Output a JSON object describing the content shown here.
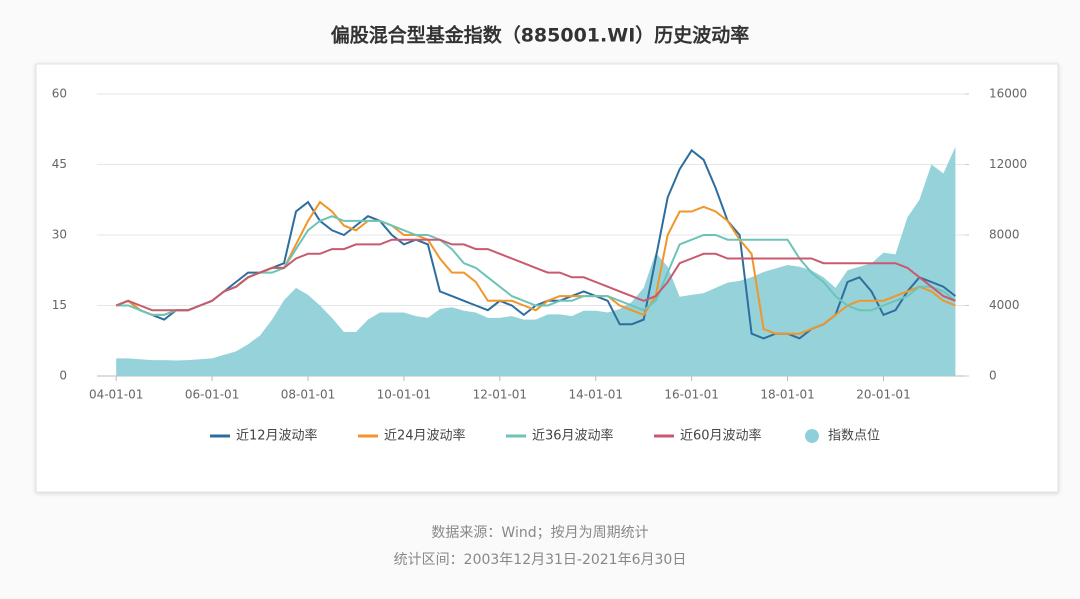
{
  "chart_data": {
    "type": "line",
    "title": "偏股混合型基金指数（885001.WI）历史波动率",
    "notes": [
      "数据来源：Wind；按月为周期统计",
      "统计区间：2003年12月31日-2021年6月30日"
    ],
    "x": [
      2004,
      2004.25,
      2004.5,
      2004.75,
      2005,
      2005.25,
      2005.5,
      2005.75,
      2006,
      2006.25,
      2006.5,
      2006.75,
      2007,
      2007.25,
      2007.5,
      2007.75,
      2008,
      2008.25,
      2008.5,
      2008.75,
      2009,
      2009.25,
      2009.5,
      2009.75,
      2010,
      2010.25,
      2010.5,
      2010.75,
      2011,
      2011.25,
      2011.5,
      2011.75,
      2012,
      2012.25,
      2012.5,
      2012.75,
      2013,
      2013.25,
      2013.5,
      2013.75,
      2014,
      2014.25,
      2014.5,
      2014.75,
      2015,
      2015.25,
      2015.5,
      2015.75,
      2016,
      2016.25,
      2016.5,
      2016.75,
      2017,
      2017.25,
      2017.5,
      2017.75,
      2018,
      2018.25,
      2018.5,
      2018.75,
      2019,
      2019.25,
      2019.5,
      2019.75,
      2020,
      2020.25,
      2020.5,
      2020.75,
      2021,
      2021.25,
      2021.5
    ],
    "xlim": [
      2003.6,
      2021.7
    ],
    "xticks": [
      {
        "value": 2004,
        "label": "04-01-01"
      },
      {
        "value": 2006,
        "label": "06-01-01"
      },
      {
        "value": 2008,
        "label": "08-01-01"
      },
      {
        "value": 2010,
        "label": "10-01-01"
      },
      {
        "value": 2012,
        "label": "12-01-01"
      },
      {
        "value": 2014,
        "label": "14-01-01"
      },
      {
        "value": 2016,
        "label": "16-01-01"
      },
      {
        "value": 2018,
        "label": "18-01-01"
      },
      {
        "value": 2020,
        "label": "20-01-01"
      }
    ],
    "ylim": [
      0,
      60
    ],
    "yticks": [
      0,
      15,
      30,
      45,
      60
    ],
    "y2lim": [
      0,
      16000
    ],
    "y2ticks": [
      0,
      4000,
      8000,
      12000,
      16000
    ],
    "grid": true,
    "series": [
      {
        "name": "近12月波动率",
        "color": "#2e6e9e",
        "values": [
          15,
          16,
          14,
          13,
          12,
          14,
          14,
          15,
          16,
          18,
          20,
          22,
          22,
          23,
          24,
          35,
          37,
          33,
          31,
          30,
          32,
          34,
          33,
          30,
          28,
          29,
          28,
          18,
          17,
          16,
          15,
          14,
          16,
          15,
          13,
          15,
          16,
          16,
          17,
          18,
          17,
          16,
          11,
          11,
          12,
          25,
          38,
          44,
          48,
          46,
          40,
          33,
          30,
          9,
          8,
          9,
          9,
          8,
          10,
          11,
          13,
          20,
          21,
          18,
          13,
          14,
          18,
          21,
          20,
          19,
          17
        ]
      },
      {
        "name": "近24月波动率",
        "color": "#f0962a",
        "values": [
          15,
          16,
          14,
          13,
          13,
          14,
          14,
          15,
          16,
          18,
          19,
          21,
          22,
          23,
          23,
          28,
          33,
          37,
          35,
          32,
          31,
          33,
          33,
          32,
          30,
          30,
          29,
          25,
          22,
          22,
          20,
          16,
          16,
          16,
          15,
          14,
          16,
          17,
          17,
          17,
          17,
          17,
          15,
          14,
          13,
          17,
          30,
          35,
          35,
          36,
          35,
          33,
          29,
          26,
          10,
          9,
          9,
          9,
          10,
          11,
          13,
          15,
          16,
          16,
          16,
          17,
          18,
          19,
          18,
          16,
          15
        ]
      },
      {
        "name": "近36月波动率",
        "color": "#6cc4b8",
        "values": [
          15,
          15,
          14,
          13,
          13,
          14,
          14,
          15,
          16,
          18,
          19,
          21,
          22,
          22,
          23,
          27,
          31,
          33,
          34,
          33,
          33,
          33,
          33,
          32,
          31,
          30,
          30,
          29,
          27,
          24,
          23,
          21,
          19,
          17,
          16,
          15,
          15,
          16,
          16,
          17,
          17,
          17,
          16,
          15,
          14,
          16,
          22,
          28,
          29,
          30,
          30,
          29,
          29,
          29,
          29,
          29,
          29,
          25,
          22,
          20,
          17,
          15,
          14,
          14,
          15,
          16,
          17,
          19,
          19,
          18,
          16
        ]
      },
      {
        "name": "近60月波动率",
        "color": "#c95a6e",
        "values": [
          15,
          16,
          15,
          14,
          14,
          14,
          14,
          15,
          16,
          18,
          19,
          21,
          22,
          23,
          23,
          25,
          26,
          26,
          27,
          27,
          28,
          28,
          28,
          29,
          29,
          29,
          29,
          29,
          28,
          28,
          27,
          27,
          26,
          25,
          24,
          23,
          22,
          22,
          21,
          21,
          20,
          19,
          18,
          17,
          16,
          17,
          20,
          24,
          25,
          26,
          26,
          25,
          25,
          25,
          25,
          25,
          25,
          25,
          25,
          24,
          24,
          24,
          24,
          24,
          24,
          24,
          23,
          21,
          19,
          17,
          16
        ]
      },
      {
        "name": "指数点位",
        "color": "#8fd0d8",
        "axis": "y2",
        "kind": "area",
        "values": [
          1000,
          1000,
          950,
          900,
          900,
          880,
          900,
          950,
          1000,
          1200,
          1400,
          1800,
          2300,
          3200,
          4300,
          5000,
          4600,
          4000,
          3300,
          2500,
          2500,
          3200,
          3600,
          3600,
          3600,
          3400,
          3300,
          3800,
          3900,
          3700,
          3600,
          3300,
          3300,
          3400,
          3200,
          3200,
          3500,
          3500,
          3400,
          3700,
          3700,
          3600,
          3800,
          4200,
          5000,
          7000,
          6200,
          4500,
          4600,
          4700,
          5000,
          5300,
          5400,
          5600,
          5900,
          6100,
          6300,
          6200,
          6000,
          5600,
          5000,
          6000,
          6200,
          6400,
          7000,
          6900,
          9000,
          10000,
          12000,
          11500,
          13000
        ]
      }
    ]
  }
}
